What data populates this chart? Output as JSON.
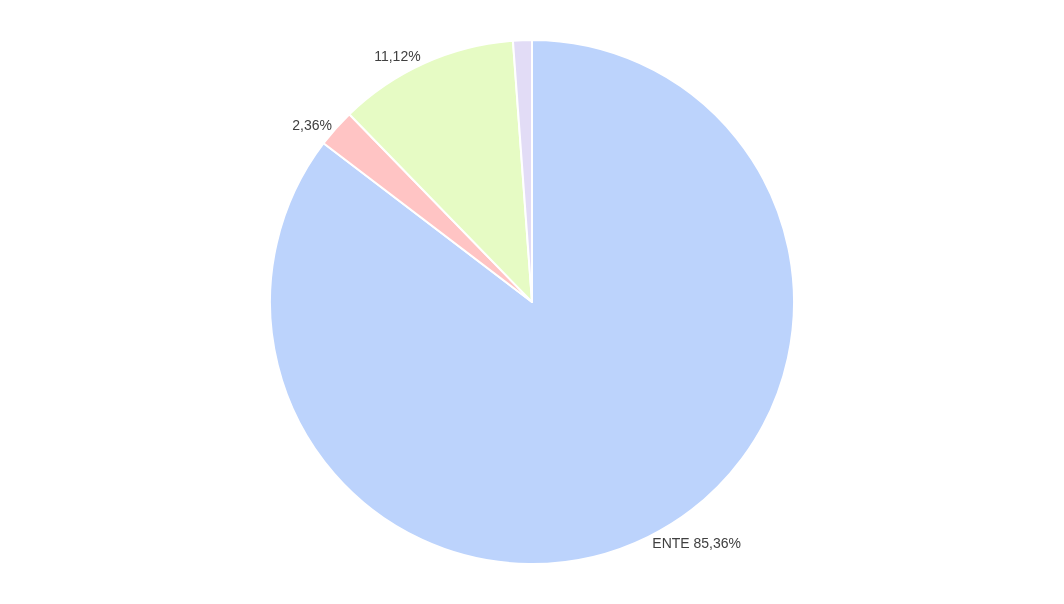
{
  "chart_data": {
    "type": "pie",
    "categories": [
      "ENTE",
      null,
      null,
      null
    ],
    "values": [
      85.36,
      2.36,
      11.12,
      1.16
    ],
    "value_labels": [
      "85,36%",
      "2,36%",
      "11,12%",
      null
    ],
    "colors": [
      "#bcd3fc",
      "#ffc4c4",
      "#e6fbc4",
      "#e2dcf6"
    ],
    "legend": false
  }
}
